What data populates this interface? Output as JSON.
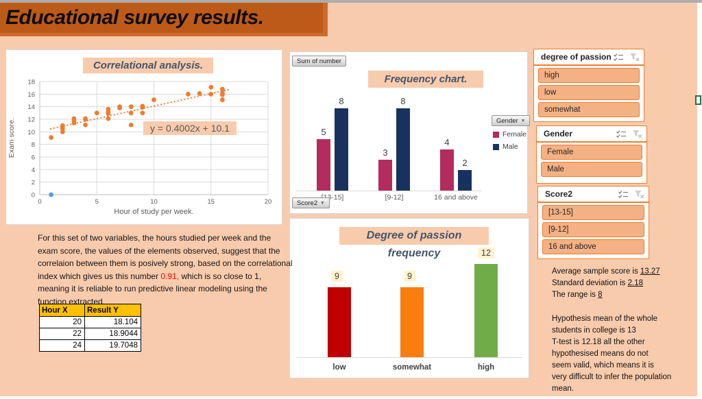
{
  "page": {
    "title": "Educational survey results."
  },
  "theme": {
    "background": "#F8CBAD",
    "banner": "#BE5A17",
    "accent": "#ED7D31",
    "title_text": "#44546A"
  },
  "chart_data": [
    {
      "type": "scatter",
      "title": "Correlational analysis.",
      "xlabel": "Hour of study per week.",
      "ylabel": "Exam score.",
      "xlim": [
        0,
        20
      ],
      "ylim": [
        0,
        18
      ],
      "xticks": [
        0,
        5,
        10,
        15,
        20
      ],
      "yticks": [
        0,
        2,
        4,
        6,
        8,
        10,
        12,
        14,
        16,
        18
      ],
      "grid": true,
      "point_color": "#ED7D31",
      "outlier_color": "#5B9BD5",
      "points": [
        [
          1,
          9.1
        ],
        [
          2,
          10
        ],
        [
          2,
          10.5
        ],
        [
          2,
          10.8
        ],
        [
          2,
          11
        ],
        [
          3,
          11.4
        ],
        [
          3,
          11.8
        ],
        [
          3,
          12.1
        ],
        [
          4,
          11.1
        ],
        [
          4,
          12
        ],
        [
          4,
          12.1
        ],
        [
          5,
          13
        ],
        [
          6,
          12.1
        ],
        [
          6,
          12.9
        ],
        [
          6,
          13.2
        ],
        [
          6,
          13.6
        ],
        [
          7,
          13.8
        ],
        [
          7,
          14
        ],
        [
          8,
          11.1
        ],
        [
          8,
          13
        ],
        [
          8,
          14
        ],
        [
          9,
          13
        ],
        [
          9,
          13.9
        ],
        [
          9,
          14.1
        ],
        [
          10,
          15.1
        ],
        [
          13,
          16
        ],
        [
          14,
          16.1
        ],
        [
          15,
          16
        ],
        [
          15,
          17.1
        ],
        [
          16,
          15.1
        ],
        [
          16,
          15.9
        ],
        [
          16,
          16.2
        ],
        [
          16,
          16.8
        ]
      ],
      "outlier_point": [
        1,
        0
      ],
      "trendline": {
        "equation": "y = 0.4002x + 10.1",
        "slope": 0.4002,
        "intercept": 10.1,
        "x_range": [
          0.9,
          16.6
        ],
        "style": "dotted"
      }
    },
    {
      "type": "bar",
      "title": "Frequency chart.",
      "categories": [
        "[13-15]",
        "[9-12]",
        "16 and above"
      ],
      "series": [
        {
          "name": "Female",
          "color": "#B42B5E",
          "values": [
            5,
            3,
            4
          ]
        },
        {
          "name": "Male",
          "color": "#17325F",
          "values": [
            8,
            8,
            2
          ]
        }
      ],
      "legend_position": "right",
      "pivot_buttons": {
        "value": "Sum of number",
        "legend": "Gender",
        "axis": "Score2"
      }
    },
    {
      "type": "bar",
      "title": "Degree of passion frequency",
      "categories": [
        "low",
        "somewhat",
        "high"
      ],
      "values": [
        9,
        9,
        12
      ],
      "bar_colors": [
        "#C00000",
        "#FA7D0F",
        "#70AD47"
      ],
      "label_box_color": "#FFF2CC"
    }
  ],
  "analysis": {
    "part1": "For this set of two variables, the hours studied per week and the exam score, the values of the elements observed, suggest that the correlaion between them is posively strong, based on the correlational index which gives us this number ",
    "highlight": "0.91,",
    "part2": " which is so close to 1, meaning it is reliable to run predictive linear modeling using the function extracted."
  },
  "prediction_table": {
    "headers": [
      "Hour X",
      "Result Y"
    ],
    "rows": [
      [
        "20",
        "18.104"
      ],
      [
        "22",
        "18.9044"
      ],
      [
        "24",
        "19.7048"
      ]
    ]
  },
  "slicers": [
    {
      "title": "degree of passion",
      "items": [
        "high",
        "low",
        "somewhat"
      ]
    },
    {
      "title": "Gender",
      "items": [
        "Female",
        "Male"
      ]
    },
    {
      "title": "Score2",
      "items": [
        "[13-15]",
        "[9-12]",
        "16 and above"
      ]
    }
  ],
  "stats": {
    "summary": [
      {
        "text": "Average sample score is ",
        "value": "13.27"
      },
      {
        "text": "Standard deviation is ",
        "value": "2.18"
      },
      {
        "text": "The range is ",
        "value": "8"
      }
    ],
    "hypothesis": [
      "Hypothesis mean of the whole",
      "students in college is 13",
      "T-test is 12.18 all the other",
      "hypothesised means do not",
      "seem valid, which means it is",
      "very difficult to infer the population",
      "mean."
    ]
  }
}
